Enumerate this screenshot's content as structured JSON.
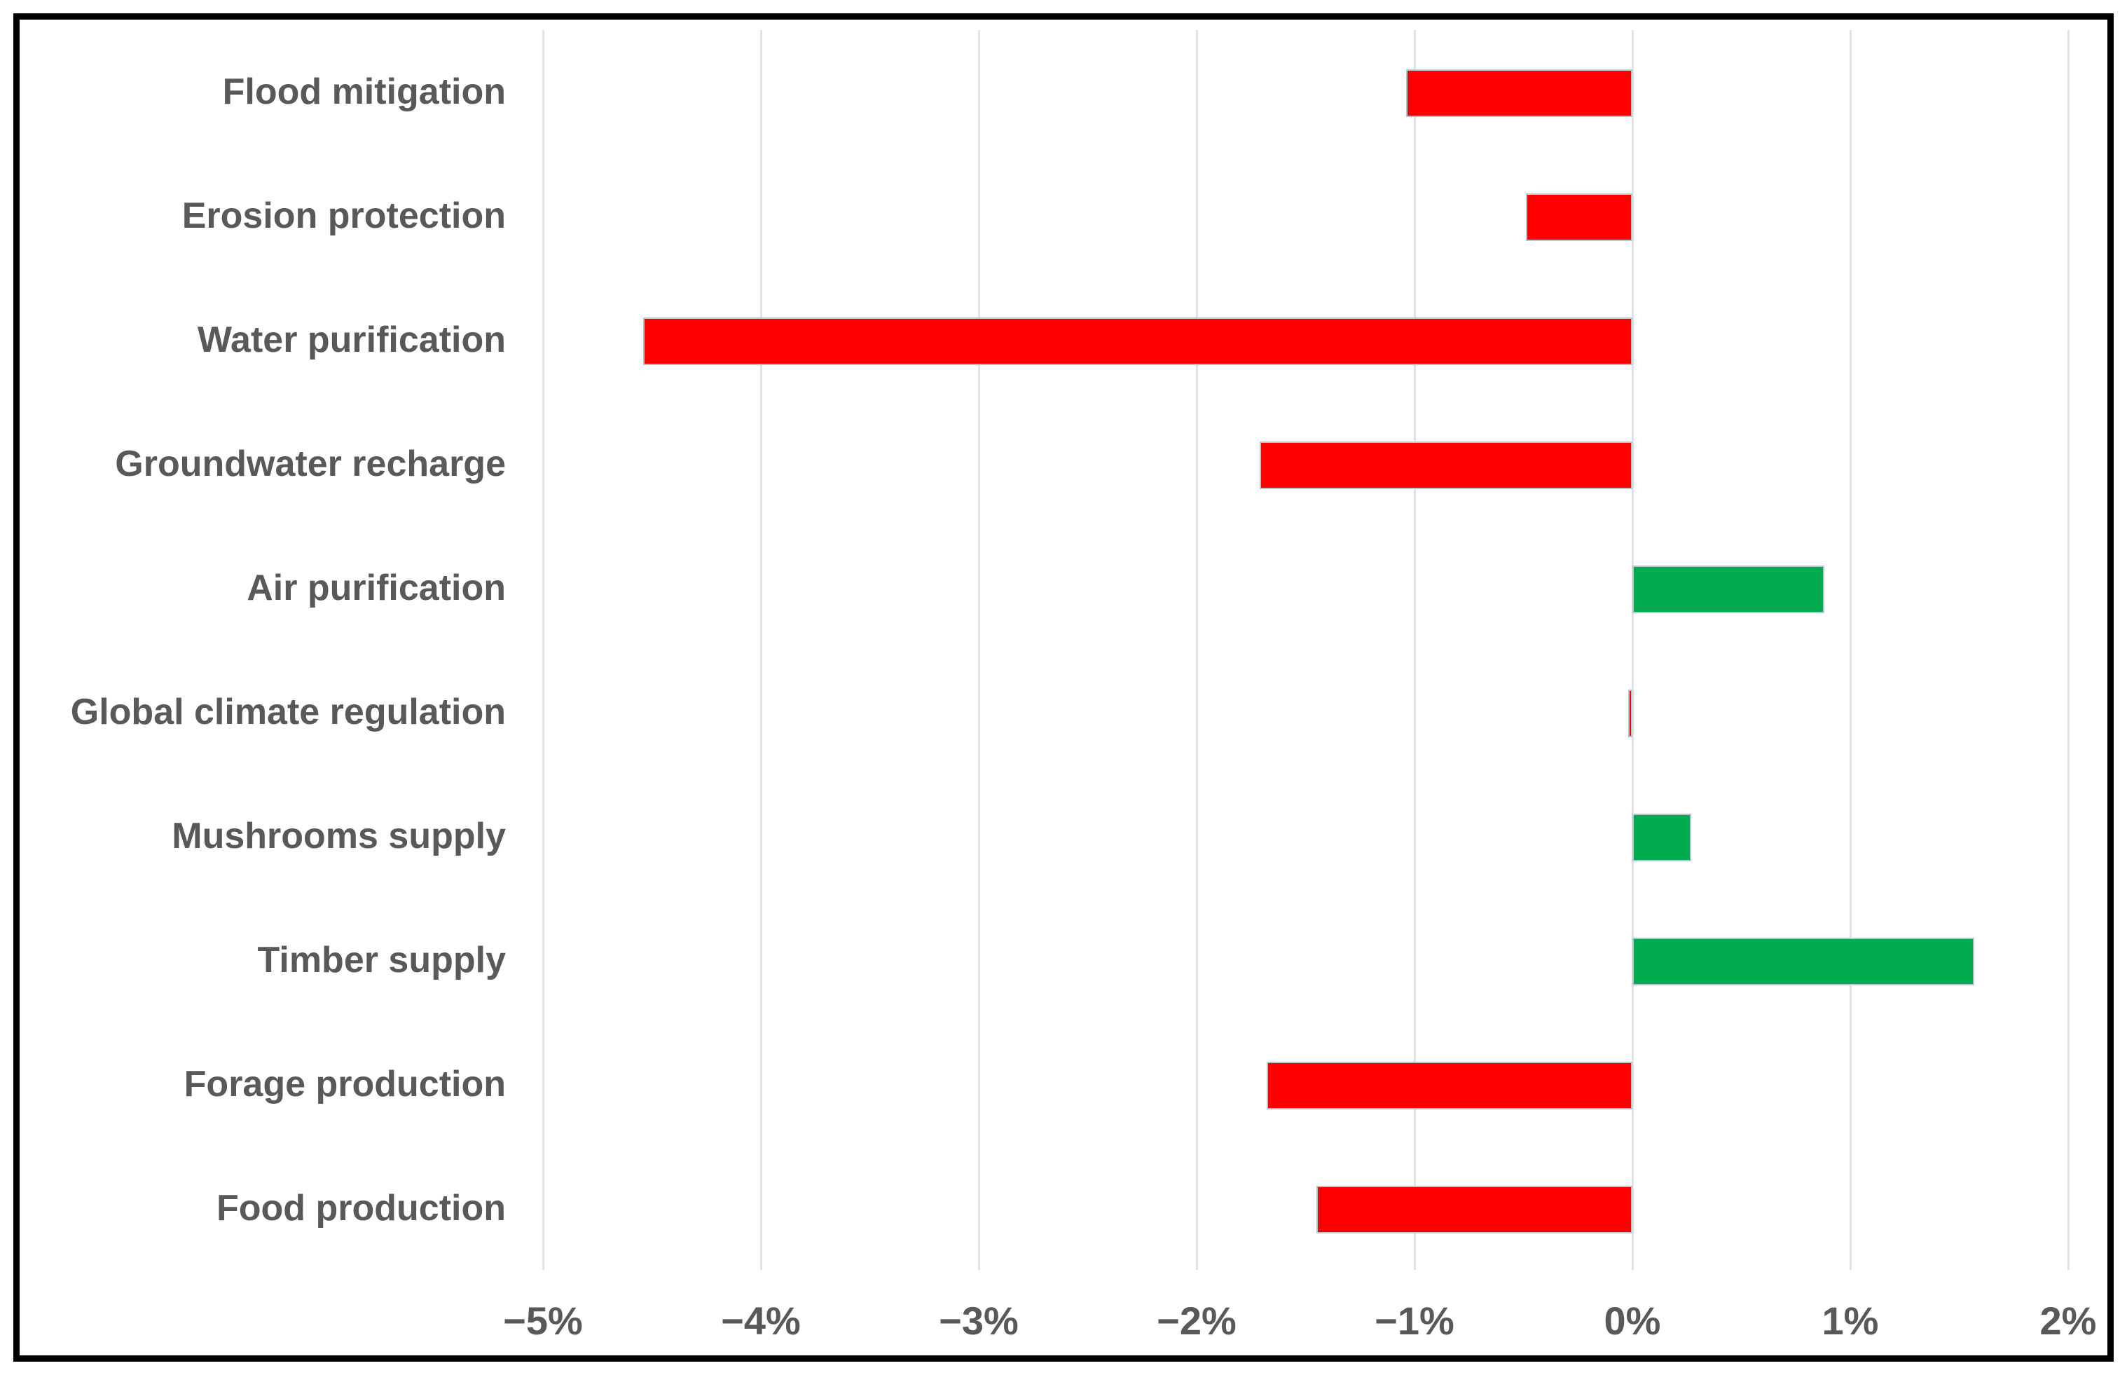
{
  "chart_data": {
    "type": "bar",
    "orientation": "horizontal",
    "title": "",
    "xlabel": "",
    "ylabel": "",
    "unit": "%",
    "categories": [
      "Flood mitigation",
      "Erosion protection",
      "Water purification",
      "Groundwater recharge",
      "Air purification",
      "Global climate regulation",
      "Mushrooms supply",
      "Timber supply",
      "Forage production",
      "Food production"
    ],
    "values": [
      -1.04,
      -0.49,
      -4.54,
      -1.71,
      0.88,
      -0.02,
      0.27,
      1.57,
      -1.68,
      -1.45
    ],
    "xlim": [
      -5,
      2
    ],
    "xtick_values": [
      -5,
      -4,
      -3,
      -2,
      -1,
      0,
      1,
      2
    ],
    "xtick_labels": [
      "−5%",
      "−4%",
      "−3%",
      "−2%",
      "−1%",
      "0%",
      "1%",
      "2%"
    ],
    "grid": true,
    "legend": "none",
    "colors": {
      "negative": "#ff0000",
      "positive": "#00ac4e",
      "bar_border": "#b7c7cf",
      "gridline": "#e2e2e2",
      "label_text": "#595959",
      "frame": "#000000",
      "background": "#ffffff"
    }
  }
}
